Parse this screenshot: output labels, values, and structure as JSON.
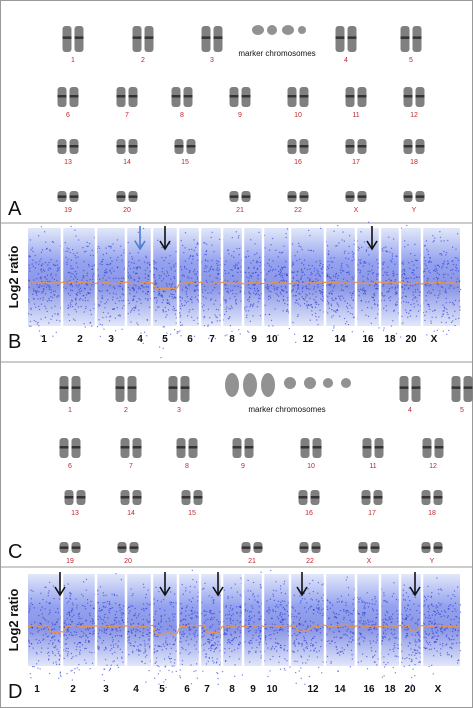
{
  "panels": [
    {
      "letter": "A",
      "marker": "marker chromosomes",
      "labels": [
        "1",
        "2",
        "3",
        "4",
        "5",
        "6",
        "7",
        "8",
        "9",
        "10",
        "11",
        "12",
        "13",
        "14",
        "15",
        "16",
        "17",
        "18",
        "19",
        "20",
        "21",
        "22",
        "X",
        "Y"
      ]
    },
    {
      "letter": "B",
      "axis_label": "Log2 ratio",
      "chromosomes": [
        "1",
        "2",
        "3",
        "4",
        "5",
        "6",
        "7",
        "8",
        "9",
        "10",
        "12",
        "14",
        "16",
        "18",
        "20",
        "X"
      ]
    },
    {
      "letter": "C",
      "marker": "marker chromosomes",
      "labels": [
        "1",
        "2",
        "3",
        "4",
        "5",
        "6",
        "7",
        "8",
        "9",
        "10",
        "11",
        "12",
        "13",
        "14",
        "15",
        "16",
        "17",
        "18",
        "19",
        "20",
        "21",
        "22",
        "X",
        "Y"
      ]
    },
    {
      "letter": "D",
      "axis_label": "Log2 ratio",
      "chromosomes": [
        "1",
        "2",
        "3",
        "4",
        "5",
        "6",
        "7",
        "8",
        "9",
        "10",
        "12",
        "14",
        "16",
        "18",
        "20",
        "X"
      ]
    }
  ]
}
